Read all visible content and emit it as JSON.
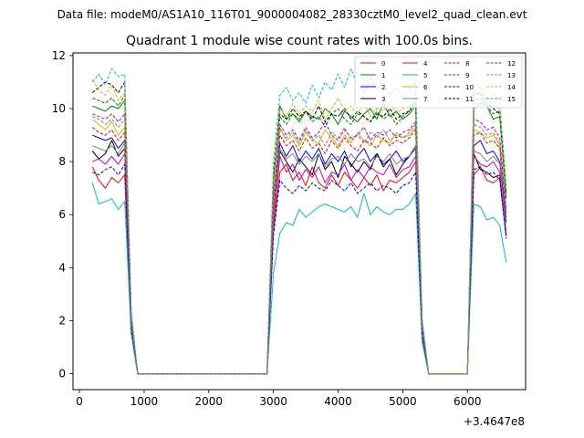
{
  "suptitle": "Data file: modeM0/AS1A10_116T01_9000004082_28330cztM0_level2_quad_clean.evt",
  "chart_data": {
    "type": "line",
    "title": "Quadrant 1 module wise count rates with 100.0s bins.",
    "xlabel": "",
    "ylabel": "",
    "x_offset_label": "+3.4647e8",
    "xlim": [
      -100,
      6900
    ],
    "ylim": [
      -0.6,
      12.1
    ],
    "xticks": [
      0,
      1000,
      2000,
      3000,
      4000,
      5000,
      6000
    ],
    "yticks": [
      0,
      2,
      4,
      6,
      8,
      10,
      12
    ],
    "legend_position": "top-right",
    "legend_columns": 4,
    "x": [
      200,
      300,
      400,
      500,
      600,
      700,
      800,
      900,
      1000,
      1100,
      1200,
      1300,
      1400,
      1500,
      1600,
      1700,
      1800,
      1900,
      2000,
      2100,
      2200,
      2300,
      2400,
      2500,
      2600,
      2700,
      2800,
      2900,
      3000,
      3100,
      3200,
      3300,
      3400,
      3500,
      3600,
      3700,
      3800,
      3900,
      4000,
      4100,
      4200,
      4300,
      4400,
      4500,
      4600,
      4700,
      4800,
      4900,
      5000,
      5100,
      5200,
      5300,
      5400,
      5500,
      5600,
      5700,
      5800,
      5900,
      6000,
      6100,
      6200,
      6300,
      6400,
      6500,
      6600
    ],
    "series": [
      {
        "name": "0",
        "color": "#ff0000",
        "dash": "solid",
        "values": [
          7.8,
          7.3,
          7.0,
          7.4,
          7.2,
          7.5,
          1.6,
          0,
          0,
          0,
          0,
          0,
          0,
          0,
          0,
          0,
          0,
          0,
          0,
          0,
          0,
          0,
          0,
          0,
          0,
          0,
          0,
          0,
          5.4,
          7.6,
          7.9,
          7.3,
          7.6,
          7.1,
          7.8,
          7.2,
          7.0,
          7.5,
          7.1,
          7.6,
          7.3,
          7.0,
          7.4,
          7.1,
          7.5,
          6.9,
          7.3,
          7.2,
          7.4,
          7.6,
          8.0,
          1.4,
          0,
          0,
          0,
          0,
          0,
          0,
          0,
          7.5,
          7.8,
          7.3,
          7.2,
          7.4,
          5.2
        ]
      },
      {
        "name": "1",
        "color": "#008000",
        "dash": "solid",
        "values": [
          10.1,
          10.0,
          9.9,
          10.1,
          10.0,
          10.3,
          2.1,
          0,
          0,
          0,
          0,
          0,
          0,
          0,
          0,
          0,
          0,
          0,
          0,
          0,
          0,
          0,
          0,
          0,
          0,
          0,
          0,
          0,
          7.2,
          10.1,
          9.6,
          9.8,
          9.5,
          9.9,
          9.7,
          9.6,
          10.0,
          9.8,
          9.4,
          9.9,
          9.7,
          9.5,
          9.8,
          10.0,
          9.6,
          10.2,
          9.7,
          9.9,
          9.6,
          9.8,
          10.1,
          1.9,
          0,
          0,
          0,
          0,
          0,
          0,
          0,
          10.0,
          10.2,
          10.1,
          9.6,
          9.7,
          6.6
        ]
      },
      {
        "name": "2",
        "color": "#0000ff",
        "dash": "solid",
        "values": [
          9.0,
          8.9,
          8.8,
          8.9,
          8.5,
          8.8,
          1.9,
          0,
          0,
          0,
          0,
          0,
          0,
          0,
          0,
          0,
          0,
          0,
          0,
          0,
          0,
          0,
          0,
          0,
          0,
          0,
          0,
          0,
          6.0,
          8.7,
          8.2,
          8.6,
          8.0,
          8.4,
          8.1,
          8.5,
          7.9,
          8.3,
          8.0,
          8.4,
          7.8,
          8.2,
          8.5,
          8.0,
          8.3,
          7.9,
          8.1,
          8.4,
          8.0,
          8.2,
          8.5,
          1.7,
          0,
          0,
          0,
          0,
          0,
          0,
          0,
          8.6,
          8.8,
          8.3,
          8.4,
          8.0,
          5.7
        ]
      },
      {
        "name": "3",
        "color": "#000000",
        "dash": "solid",
        "values": [
          8.4,
          8.1,
          8.3,
          8.8,
          8.2,
          8.5,
          1.8,
          0,
          0,
          0,
          0,
          0,
          0,
          0,
          0,
          0,
          0,
          0,
          0,
          0,
          0,
          0,
          0,
          0,
          0,
          0,
          0,
          0,
          5.8,
          8.4,
          8.0,
          7.6,
          8.1,
          7.8,
          7.5,
          8.3,
          7.7,
          8.0,
          7.4,
          8.2,
          7.9,
          7.6,
          8.0,
          7.7,
          8.3,
          7.8,
          8.1,
          7.5,
          7.9,
          8.2,
          8.6,
          1.6,
          0,
          0,
          0,
          0,
          0,
          0,
          0,
          8.3,
          7.7,
          7.6,
          7.4,
          7.5,
          5.2
        ]
      },
      {
        "name": "4",
        "color": "#bf00bf",
        "dash": "solid",
        "values": [
          8.0,
          8.1,
          7.9,
          8.2,
          7.9,
          8.3,
          1.8,
          0,
          0,
          0,
          0,
          0,
          0,
          0,
          0,
          0,
          0,
          0,
          0,
          0,
          0,
          0,
          0,
          0,
          0,
          0,
          0,
          0,
          5.6,
          8.2,
          7.6,
          7.9,
          7.3,
          7.7,
          7.4,
          7.8,
          7.2,
          7.6,
          7.5,
          7.9,
          7.3,
          7.7,
          7.4,
          7.8,
          7.6,
          7.5,
          7.9,
          7.4,
          7.7,
          7.8,
          8.2,
          1.6,
          0,
          0,
          0,
          0,
          0,
          0,
          0,
          8.2,
          7.9,
          7.8,
          8.0,
          7.6,
          5.3
        ]
      },
      {
        "name": "5",
        "color": "#00bfbf",
        "dash": "solid",
        "values": [
          7.2,
          6.4,
          6.5,
          6.6,
          6.2,
          6.5,
          1.5,
          0,
          0,
          0,
          0,
          0,
          0,
          0,
          0,
          0,
          0,
          0,
          0,
          0,
          0,
          0,
          0,
          0,
          0,
          0,
          0,
          0,
          3.8,
          5.3,
          5.7,
          5.6,
          6.2,
          5.9,
          6.1,
          6.3,
          6.4,
          6.3,
          6.2,
          6.1,
          6.3,
          5.9,
          6.8,
          6.0,
          6.3,
          6.1,
          6.0,
          6.2,
          6.2,
          6.4,
          6.8,
          1.2,
          0,
          0,
          0,
          0,
          0,
          0,
          0,
          6.4,
          6.3,
          5.8,
          5.9,
          5.6,
          4.2
        ]
      },
      {
        "name": "6",
        "color": "#bfbf00",
        "dash": "solid",
        "values": [
          9.6,
          9.4,
          9.2,
          9.5,
          9.0,
          9.3,
          2.0,
          0,
          0,
          0,
          0,
          0,
          0,
          0,
          0,
          0,
          0,
          0,
          0,
          0,
          0,
          0,
          0,
          0,
          0,
          0,
          0,
          0,
          6.5,
          9.3,
          8.8,
          9.0,
          8.6,
          9.1,
          8.8,
          8.7,
          9.2,
          8.9,
          8.6,
          9.0,
          8.7,
          9.1,
          8.8,
          8.6,
          9.0,
          8.8,
          8.7,
          9.1,
          8.9,
          9.0,
          9.3,
          1.8,
          0,
          0,
          0,
          0,
          0,
          0,
          0,
          9.2,
          9.1,
          8.9,
          9.0,
          8.6,
          6.0
        ]
      },
      {
        "name": "7",
        "color": "#808080",
        "dash": "solid",
        "values": [
          8.6,
          8.5,
          8.4,
          8.6,
          8.3,
          8.7,
          1.8,
          0,
          0,
          0,
          0,
          0,
          0,
          0,
          0,
          0,
          0,
          0,
          0,
          0,
          0,
          0,
          0,
          0,
          0,
          0,
          0,
          0,
          5.9,
          8.5,
          8.1,
          8.3,
          7.9,
          8.2,
          8.0,
          8.3,
          7.8,
          8.1,
          8.2,
          7.9,
          8.3,
          8.0,
          8.1,
          7.8,
          8.2,
          8.0,
          8.3,
          7.9,
          8.1,
          8.2,
          8.6,
          1.6,
          0,
          0,
          0,
          0,
          0,
          0,
          0,
          8.4,
          8.3,
          8.0,
          8.2,
          7.9,
          5.4
        ]
      },
      {
        "name": "8",
        "color": "#ff0000",
        "dash": "dashed",
        "values": [
          9.3,
          9.1,
          9.0,
          9.2,
          8.8,
          9.1,
          1.9,
          0,
          0,
          0,
          0,
          0,
          0,
          0,
          0,
          0,
          0,
          0,
          0,
          0,
          0,
          0,
          0,
          0,
          0,
          0,
          0,
          0,
          6.3,
          9.0,
          8.6,
          8.8,
          8.4,
          8.9,
          8.5,
          8.7,
          8.3,
          8.8,
          8.5,
          8.9,
          8.6,
          8.4,
          8.8,
          8.7,
          8.5,
          8.9,
          8.6,
          8.8,
          8.7,
          8.9,
          9.2,
          1.8,
          0,
          0,
          0,
          0,
          0,
          0,
          0,
          9.0,
          9.1,
          8.7,
          8.8,
          8.5,
          5.9
        ]
      },
      {
        "name": "9",
        "color": "#008000",
        "dash": "dashed",
        "values": [
          10.4,
          10.3,
          10.2,
          10.4,
          10.1,
          10.5,
          2.2,
          0,
          0,
          0,
          0,
          0,
          0,
          0,
          0,
          0,
          0,
          0,
          0,
          0,
          0,
          0,
          0,
          0,
          0,
          0,
          0,
          0,
          7.4,
          9.7,
          9.4,
          9.8,
          9.6,
          9.9,
          9.5,
          9.7,
          9.3,
          9.8,
          10.0,
          9.6,
          9.4,
          9.8,
          9.7,
          9.5,
          9.9,
          9.6,
          9.8,
          9.4,
          9.7,
          9.9,
          10.2,
          2.0,
          0,
          0,
          0,
          0,
          0,
          0,
          0,
          10.3,
          10.4,
          10.1,
          9.8,
          9.9,
          6.8
        ]
      },
      {
        "name": "10",
        "color": "#0000ff",
        "dash": "dashed",
        "values": [
          7.6,
          7.5,
          7.7,
          7.8,
          7.5,
          7.9,
          1.7,
          0,
          0,
          0,
          0,
          0,
          0,
          0,
          0,
          0,
          0,
          0,
          0,
          0,
          0,
          0,
          0,
          0,
          0,
          0,
          0,
          0,
          5.2,
          7.3,
          7.0,
          6.8,
          7.1,
          6.9,
          7.2,
          7.0,
          6.9,
          7.3,
          7.1,
          6.9,
          7.2,
          6.8,
          7.0,
          7.2,
          6.9,
          7.1,
          7.0,
          6.8,
          7.1,
          7.2,
          7.6,
          1.5,
          0,
          0,
          0,
          0,
          0,
          0,
          0,
          7.7,
          7.8,
          7.5,
          7.6,
          7.3,
          5.1
        ]
      },
      {
        "name": "11",
        "color": "#000000",
        "dash": "dashed",
        "values": [
          10.6,
          10.8,
          11.0,
          10.9,
          10.6,
          11.0,
          2.3,
          0,
          0,
          0,
          0,
          0,
          0,
          0,
          0,
          0,
          0,
          0,
          0,
          0,
          0,
          0,
          0,
          0,
          0,
          0,
          0,
          0,
          7.6,
          9.8,
          9.6,
          10.0,
          9.7,
          9.9,
          9.6,
          10.1,
          9.5,
          9.8,
          9.7,
          10.0,
          9.6,
          9.9,
          9.7,
          9.5,
          9.8,
          9.7,
          10.0,
          9.6,
          9.8,
          9.9,
          10.3,
          2.0,
          0,
          0,
          0,
          0,
          0,
          0,
          0,
          10.5,
          10.6,
          10.2,
          10.0,
          9.8,
          6.9
        ]
      },
      {
        "name": "12",
        "color": "#bf00bf",
        "dash": "dashed",
        "values": [
          9.8,
          9.7,
          9.6,
          9.8,
          9.5,
          9.8,
          2.0,
          0,
          0,
          0,
          0,
          0,
          0,
          0,
          0,
          0,
          0,
          0,
          0,
          0,
          0,
          0,
          0,
          0,
          0,
          0,
          0,
          0,
          6.7,
          9.4,
          9.0,
          9.2,
          8.8,
          9.3,
          8.9,
          9.1,
          9.5,
          9.0,
          8.8,
          9.2,
          8.9,
          9.0,
          9.3,
          8.8,
          9.1,
          9.0,
          9.2,
          8.9,
          9.1,
          9.2,
          9.5,
          1.9,
          0,
          0,
          0,
          0,
          0,
          0,
          0,
          9.6,
          9.5,
          9.2,
          9.3,
          8.9,
          6.2
        ]
      },
      {
        "name": "13",
        "color": "#00bfbf",
        "dash": "dashed",
        "values": [
          11.0,
          11.3,
          10.9,
          11.5,
          11.2,
          11.3,
          2.4,
          0,
          0,
          0,
          0,
          0,
          0,
          0,
          0,
          0,
          0,
          0,
          0,
          0,
          0,
          0,
          0,
          0,
          0,
          0,
          0,
          0,
          8.0,
          10.5,
          10.8,
          10.3,
          10.6,
          10.2,
          10.9,
          10.4,
          11.0,
          10.7,
          11.3,
          10.8,
          11.5,
          10.9,
          10.6,
          11.2,
          10.7,
          11.0,
          10.5,
          10.8,
          10.4,
          10.7,
          11.1,
          2.1,
          0,
          0,
          0,
          0,
          0,
          0,
          0,
          10.9,
          10.8,
          10.4,
          10.6,
          10.2,
          7.1
        ]
      },
      {
        "name": "14",
        "color": "#bfbf00",
        "dash": "dashed",
        "values": [
          11.1,
          10.7,
          10.5,
          10.9,
          10.3,
          10.6,
          2.2,
          0,
          0,
          0,
          0,
          0,
          0,
          0,
          0,
          0,
          0,
          0,
          0,
          0,
          0,
          0,
          0,
          0,
          0,
          0,
          0,
          0,
          7.5,
          10.0,
          9.7,
          10.2,
          9.8,
          10.1,
          9.9,
          10.3,
          9.6,
          10.0,
          10.4,
          9.9,
          10.1,
          9.8,
          10.2,
          9.7,
          10.0,
          9.9,
          10.3,
          9.8,
          10.0,
          10.1,
          10.5,
          2.1,
          0,
          0,
          0,
          0,
          0,
          0,
          0,
          10.6,
          10.5,
          10.2,
          10.3,
          9.9,
          6.9
        ]
      },
      {
        "name": "15",
        "color": "#808080",
        "dash": "dashed",
        "values": [
          9.7,
          9.6,
          9.4,
          9.6,
          9.3,
          9.6,
          2.0,
          0,
          0,
          0,
          0,
          0,
          0,
          0,
          0,
          0,
          0,
          0,
          0,
          0,
          0,
          0,
          0,
          0,
          0,
          0,
          0,
          0,
          6.6,
          9.2,
          8.9,
          9.1,
          8.7,
          9.2,
          8.8,
          9.0,
          8.6,
          9.1,
          8.9,
          9.3,
          8.8,
          9.0,
          8.7,
          9.1,
          8.9,
          9.2,
          8.8,
          9.0,
          8.9,
          9.1,
          9.4,
          1.8,
          0,
          0,
          0,
          0,
          0,
          0,
          0,
          9.4,
          9.3,
          9.0,
          9.1,
          8.7,
          6.1
        ]
      }
    ]
  }
}
